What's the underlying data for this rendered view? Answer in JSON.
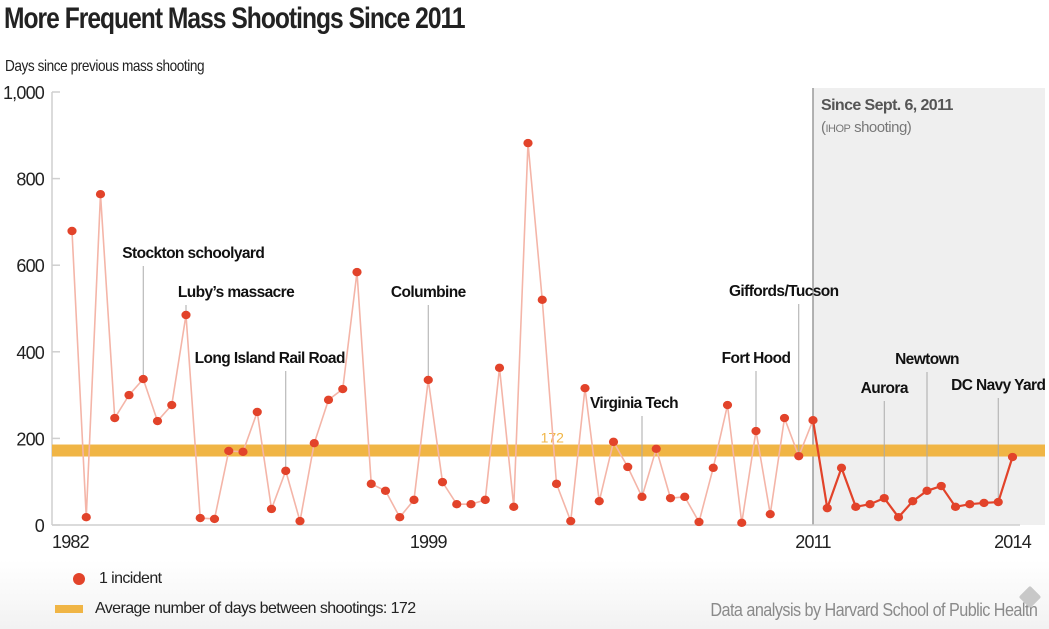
{
  "chart_data": {
    "type": "line",
    "title": "More Frequent Mass Shootings Since 2011",
    "ylabel": "Days since previous mass shooting",
    "xlabel": "",
    "ylim": [
      0,
      1000
    ],
    "yticks": [
      0,
      200,
      400,
      600,
      800,
      1000
    ],
    "ytick_labels": [
      "0",
      "200",
      "400",
      "600",
      "800",
      "1,000"
    ],
    "xtick_labels": [
      {
        "label": "1982",
        "index": 0
      },
      {
        "label": "1999",
        "index": 25
      },
      {
        "label": "2011",
        "index": 52
      },
      {
        "label": "2014",
        "index": 66
      }
    ],
    "grid": false,
    "series": [
      {
        "name": "1 incident",
        "color": "#e2432a",
        "values": [
          679,
          18,
          764,
          247,
          300,
          337,
          240,
          277,
          485,
          16,
          14,
          171,
          169,
          261,
          37,
          125,
          9,
          189,
          289,
          314,
          584,
          95,
          79,
          18,
          58,
          335,
          99,
          48,
          48,
          58,
          363,
          42,
          882,
          520,
          95,
          9,
          316,
          55,
          192,
          134,
          65,
          176,
          62,
          65,
          7,
          132,
          277,
          5,
          217,
          25,
          247,
          159,
          242,
          39,
          132,
          42,
          48,
          62,
          18,
          55,
          79,
          90,
          42,
          48,
          51,
          53,
          157
        ]
      }
    ],
    "average": {
      "value": 172,
      "label": "172",
      "color": "#f0b545"
    },
    "highlight_region": {
      "start_index": 52,
      "title": "Since Sept. 6, 2011",
      "subtitle_small": "IHOP",
      "subtitle_rest": " shooting)",
      "subtitle_open": "(",
      "fill": "#efefef"
    },
    "annotations": [
      {
        "label": "Stockton schoolyard",
        "index": 5
      },
      {
        "label": "Luby’s massacre",
        "index": 8
      },
      {
        "label": "Long Island Rail Road",
        "index": 15
      },
      {
        "label": "Columbine",
        "index": 25
      },
      {
        "label": "Virginia Tech",
        "index": 40
      },
      {
        "label": "Fort Hood",
        "index": 48
      },
      {
        "label": "Giffords/Tucson",
        "index": 51
      },
      {
        "label": "Aurora",
        "index": 57
      },
      {
        "label": "Newtown",
        "index": 60
      },
      {
        "label": "DC Navy Yard",
        "index": 65
      }
    ],
    "legend": [
      {
        "type": "dot",
        "label": "1 incident"
      },
      {
        "type": "bar",
        "label": "Average number of days between shootings: 172"
      }
    ],
    "legend_position": "bottom-left"
  },
  "source": "Data analysis by Harvard School of Public Health"
}
